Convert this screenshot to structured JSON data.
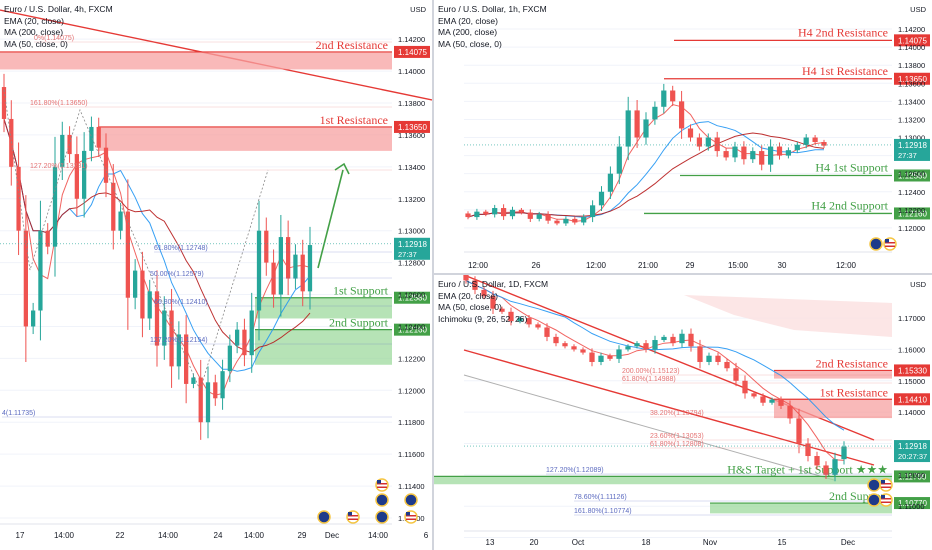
{
  "panels": [
    {
      "id": "p1",
      "legend": [
        "Euro / U.S. Dollar, 4h, FXCM",
        "EMA (20, close)",
        "MA (200, close)",
        "MA (50, close, 0)"
      ],
      "currency": "USD",
      "chart_data": {
        "type": "candlestick",
        "ylim": [
          1.112,
          1.1432
        ],
        "price_ticks": [
          "1.14200",
          "1.14000",
          "1.13800",
          "1.13600",
          "1.13400",
          "1.13200",
          "1.13000",
          "1.12800",
          "1.12600",
          "1.12400",
          "1.12200",
          "1.12000",
          "1.11800",
          "1.11600",
          "1.11400",
          "1.11200"
        ],
        "time_labels": [
          "17",
          "14:00",
          "22",
          "14:00",
          "24",
          "14:00",
          "29",
          "Dec",
          "14:00",
          "6"
        ],
        "closes": [
          1.137,
          1.134,
          1.13,
          1.124,
          1.125,
          1.13,
          1.129,
          1.134,
          1.136,
          1.1348,
          1.132,
          1.135,
          1.1365,
          1.1352,
          1.133,
          1.13,
          1.1312,
          1.1258,
          1.1275,
          1.1245,
          1.1262,
          1.1228,
          1.125,
          1.1215,
          1.1235,
          1.1204,
          1.1208,
          1.118,
          1.1205,
          1.1195,
          1.1212,
          1.1228,
          1.1238,
          1.1222,
          1.125,
          1.13,
          1.128,
          1.126,
          1.1296,
          1.127,
          1.1285,
          1.1262,
          1.1291
        ],
        "zones": [
          {
            "label": "2nd Resistance",
            "top": 1.1412,
            "bottom": 1.1401,
            "price": "1.14075"
          },
          {
            "label": "1st Resistance",
            "top": 1.1365,
            "bottom": 1.135,
            "price": "1.13650"
          },
          {
            "label": "1st Support",
            "top": 1.1258,
            "bottom": 1.1245,
            "price": "1.12580"
          },
          {
            "label": "2nd Support",
            "top": 1.1238,
            "bottom": 1.1216,
            "price": "1.12160"
          }
        ],
        "last_price": "1.12918",
        "countdown": "27:37",
        "fib_labels": [
          "161.80%(1.13650)",
          "127.20%(1.13281)",
          "61.80%(1.12748)",
          "50.00%(1.12579)",
          "66.80%(1.12410)",
          "127.20%(1.12154)",
          "4(1.11735)",
          "0%(1.14075)"
        ]
      }
    },
    {
      "id": "p2",
      "legend": [
        "Euro / U.S. Dollar, 1h, FXCM",
        "EMA (20, close)",
        "MA (200, close)",
        "MA (50, close, 0)"
      ],
      "currency": "USD",
      "chart_data": {
        "type": "candlestick",
        "ylim": [
          1.118,
          1.143
        ],
        "price_ticks": [
          "1.14200",
          "1.14000",
          "1.13800",
          "1.13600",
          "1.13400",
          "1.13200",
          "1.13000",
          "1.12800",
          "1.12600",
          "1.12400",
          "1.12200",
          "1.12000"
        ],
        "time_labels": [
          "12:00",
          "26",
          "12:00",
          "21:00",
          "29",
          "15:00",
          "30",
          "12:00"
        ],
        "closes": [
          1.1212,
          1.1218,
          1.1215,
          1.1222,
          1.1213,
          1.122,
          1.1217,
          1.121,
          1.1215,
          1.1208,
          1.1205,
          1.121,
          1.1206,
          1.1212,
          1.1225,
          1.124,
          1.126,
          1.129,
          1.133,
          1.13,
          1.132,
          1.1334,
          1.1352,
          1.134,
          1.131,
          1.13,
          1.129,
          1.13,
          1.1285,
          1.1278,
          1.129,
          1.1276,
          1.1285,
          1.127,
          1.129,
          1.128,
          1.1286,
          1.1292,
          1.13,
          1.1295,
          1.1291
        ],
        "levels": [
          {
            "label": "H4 2nd Resistance",
            "price": "1.14075"
          },
          {
            "label": "H4 1st Resistance",
            "price": "1.13650"
          },
          {
            "label": "H4 1st Support",
            "price": "1.12580"
          },
          {
            "label": "H4 2nd Support",
            "price": "1.12160"
          }
        ],
        "last_price": "1.12918",
        "countdown": "27:37"
      }
    },
    {
      "id": "p3",
      "legend": [
        "Euro / U.S. Dollar, 1D, FXCM",
        "EMA (20, close)",
        "MA (50, close, 0)",
        "Ichimoku (9, 26, 52, 26)"
      ],
      "currency": "USD",
      "chart_data": {
        "type": "candlestick",
        "ylim": [
          1.104,
          1.178
        ],
        "price_ticks": [
          "1.17000",
          "1.16000",
          "1.15000",
          "1.14000",
          "1.13000",
          "1.12000",
          "1.11000",
          "1.10000"
        ],
        "time_labels": [
          "13",
          "20",
          "Oct",
          "18",
          "Nov",
          "15",
          "Dec"
        ],
        "closes": [
          1.182,
          1.179,
          1.177,
          1.173,
          1.172,
          1.169,
          1.17,
          1.168,
          1.167,
          1.164,
          1.162,
          1.161,
          1.16,
          1.159,
          1.156,
          1.158,
          1.157,
          1.16,
          1.161,
          1.162,
          1.16,
          1.163,
          1.164,
          1.162,
          1.165,
          1.161,
          1.156,
          1.158,
          1.156,
          1.154,
          1.15,
          1.146,
          1.145,
          1.143,
          1.144,
          1.142,
          1.138,
          1.13,
          1.126,
          1.123,
          1.12,
          1.125,
          1.129
        ],
        "zones": [
          {
            "label": "2nd Resistance",
            "top": 1.1533,
            "bottom": 1.1507,
            "price": "1.15330"
          },
          {
            "label": "1st Resistance",
            "top": 1.1441,
            "bottom": 1.1381,
            "price": "1.14410"
          },
          {
            "label": "H&S Target + 1st Support ★★★",
            "top": 1.1195,
            "bottom": 1.117,
            "price": "1.11700"
          },
          {
            "label": "2nd Support",
            "top": 1.111,
            "bottom": 1.1077,
            "price": "1.10770"
          }
        ],
        "last_price": "1.12918",
        "countdown": "20:27:37",
        "fib_labels": [
          "200.00%(1.15123)",
          "61.80%(1.14988)",
          "38.20%(1.13794)",
          "23.60%(1.13053)",
          "61.80%(1.12808)",
          "127.20%(1.12089)",
          "78.60%(1.11126)",
          "161.80%(1.10774)"
        ]
      }
    }
  ],
  "colors": {
    "up": "#26a69a",
    "down": "#ef5350",
    "resistance": "#e53935",
    "resistance_fill": "#f7a1a1",
    "support": "#43a047",
    "support_fill": "#9ed99e",
    "ema": "#ef5350",
    "ma200": "#2196f3",
    "ma50": "#b71c1c",
    "dotted": "#888888"
  },
  "icons": [
    "euro-flag-icon",
    "us-flag-icon"
  ]
}
